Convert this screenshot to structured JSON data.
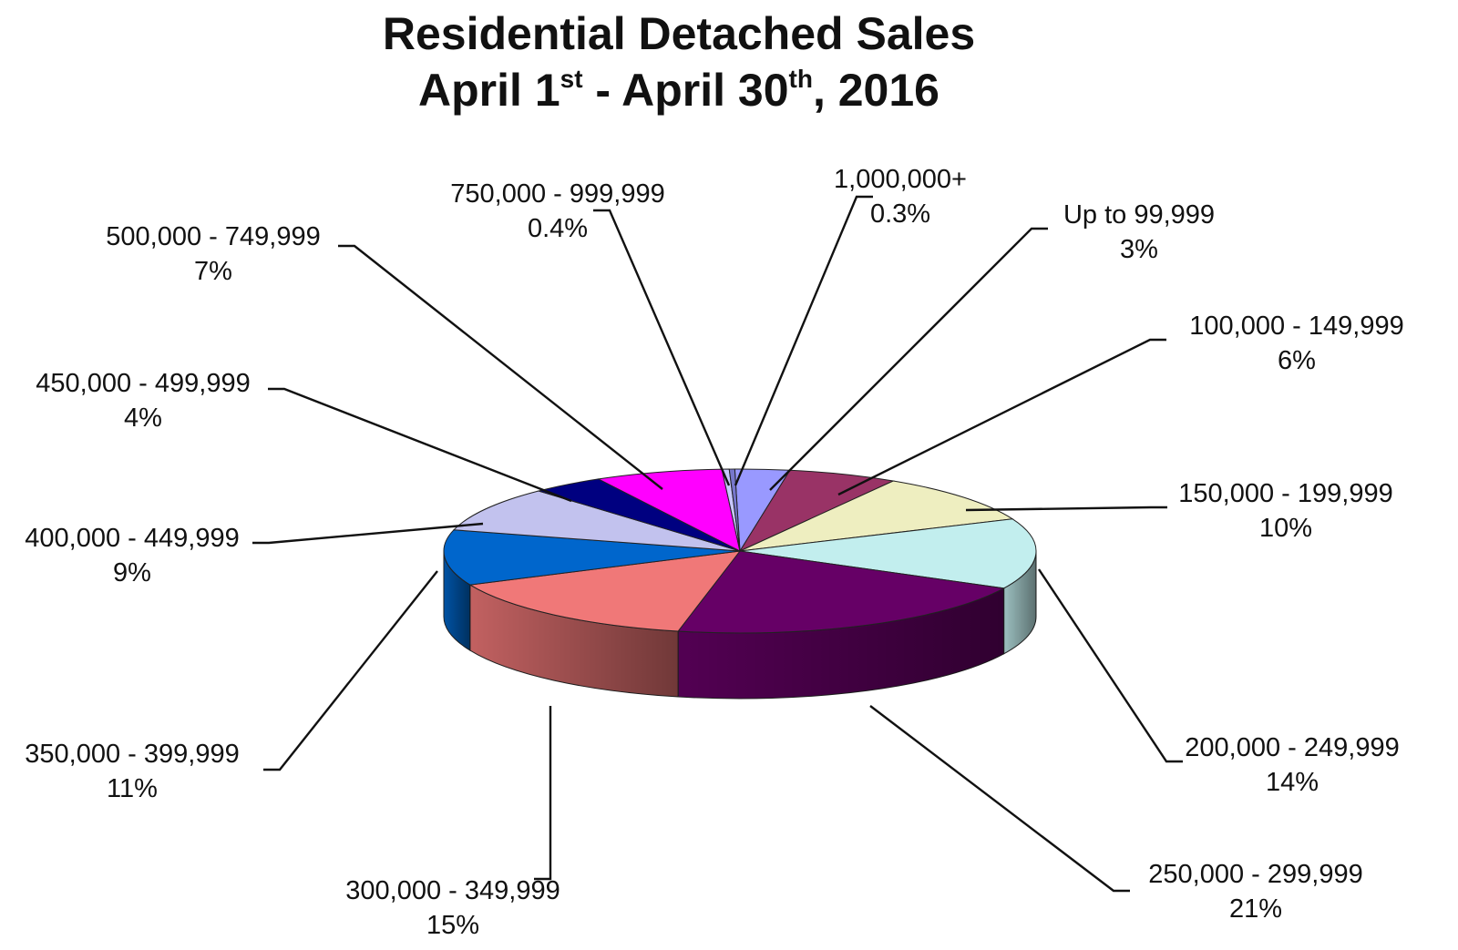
{
  "title": {
    "line1": "Residential Detached Sales",
    "line2_a": "April 1",
    "line2_sup1": "st",
    "line2_b": " - April 30",
    "line2_sup2": "th",
    "line2_c": ", 2016"
  },
  "chart_data": {
    "type": "pie",
    "title": "Residential Detached Sales April 1st - April 30th, 2016",
    "style": "3d",
    "slices": [
      {
        "label": "Up to 99,999",
        "value_label": "3%",
        "value": 3,
        "color": "#9999ff"
      },
      {
        "label": "100,000 - 149,999",
        "value_label": "6%",
        "value": 6,
        "color": "#993366"
      },
      {
        "label": "150,000 - 199,999",
        "value_label": "10%",
        "value": 10,
        "color": "#eeeec0"
      },
      {
        "label": "200,000 - 249,999",
        "value_label": "14%",
        "value": 14,
        "color": "#c2eeee"
      },
      {
        "label": "250,000 - 299,999",
        "value_label": "21%",
        "value": 21,
        "color": "#660066"
      },
      {
        "label": "300,000 - 349,999",
        "value_label": "15%",
        "value": 15,
        "color": "#f07878"
      },
      {
        "label": "350,000 - 399,999",
        "value_label": "11%",
        "value": 11,
        "color": "#0066cc"
      },
      {
        "label": "400,000 - 449,999",
        "value_label": "9%",
        "value": 9,
        "color": "#c2c2ee"
      },
      {
        "label": "450,000 - 499,999",
        "value_label": "4%",
        "value": 4,
        "color": "#000080"
      },
      {
        "label": "500,000 - 749,999",
        "value_label": "7%",
        "value": 7,
        "color": "#ff00ff"
      },
      {
        "label": "750,000 - 999,999",
        "value_label": "0.4%",
        "value": 0.4,
        "color": "#c8c8ff"
      },
      {
        "label": "1,000,000+",
        "value_label": "0.3%",
        "value": 0.3,
        "color": "#7777cc"
      }
    ]
  }
}
